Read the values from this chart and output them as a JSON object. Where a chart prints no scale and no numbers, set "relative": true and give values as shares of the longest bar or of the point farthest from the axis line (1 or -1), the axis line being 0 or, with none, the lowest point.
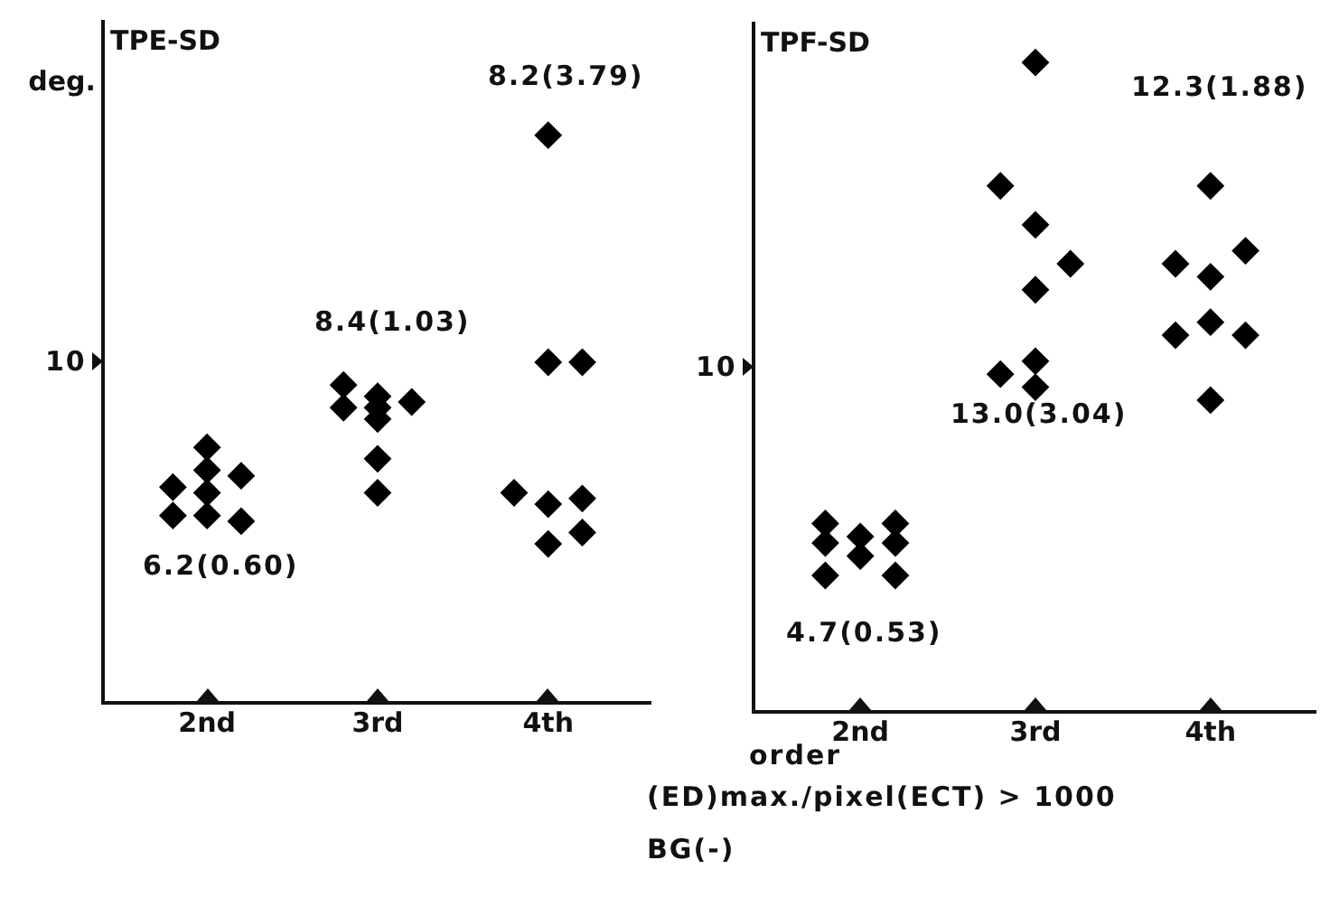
{
  "chart_data": [
    {
      "type": "scatter",
      "title": "TPE-SD",
      "ylabel": "deg.",
      "xlabel": "order",
      "marker": "diamond",
      "grid": false,
      "legend": false,
      "relative": true,
      "categories": [
        "2nd",
        "3rd",
        "4th"
      ],
      "series": [
        {
          "color": "#000000",
          "x": [
            "2nd",
            "2nd",
            "3rd",
            "3rd",
            "4th"
          ],
          "values": [
            0.38,
            0.33,
            0.56,
            0.52,
            0.37
          ]
        },
        {
          "color": "#000000",
          "x": [
            "2nd",
            "2nd",
            "2nd",
            "2nd",
            "3rd",
            "3rd",
            "3rd",
            "3rd",
            "3rd",
            "4th",
            "4th",
            "4th",
            "4th"
          ],
          "values": [
            0.45,
            0.41,
            0.37,
            0.33,
            0.54,
            0.52,
            0.5,
            0.43,
            0.37,
            1,
            0.6,
            0.35,
            0.28
          ]
        },
        {
          "color": "#000000",
          "x": [
            "2nd",
            "2nd",
            "3rd",
            "4th",
            "4th",
            "4th"
          ],
          "values": [
            0.4,
            0.32,
            0.53,
            0.6,
            0.36,
            0.3
          ]
        }
      ],
      "annotations": [
        "10",
        "6.2(0.60)",
        "8.4(1.03)",
        "8.2(3.79)"
      ]
    },
    {
      "type": "scatter",
      "title": "TPF-SD",
      "marker": "diamond",
      "grid": false,
      "legend": false,
      "relative": true,
      "categories": [
        "2nd",
        "3rd",
        "4th"
      ],
      "series": [
        {
          "color": "#000000",
          "x": [
            "2nd",
            "2nd",
            "2nd",
            "3rd",
            "3rd",
            "4th",
            "4th"
          ],
          "values": [
            0.29,
            0.26,
            0.21,
            0.81,
            0.52,
            0.69,
            0.58
          ]
        },
        {
          "color": "#000000",
          "x": [
            "2nd",
            "2nd",
            "3rd",
            "3rd",
            "3rd",
            "3rd",
            "3rd",
            "4th",
            "4th",
            "4th",
            "4th"
          ],
          "values": [
            0.27,
            0.24,
            1,
            0.75,
            0.65,
            0.54,
            0.5,
            0.81,
            0.67,
            0.6,
            0.48
          ]
        },
        {
          "color": "#000000",
          "x": [
            "2nd",
            "2nd",
            "2nd",
            "3rd",
            "4th",
            "4th"
          ],
          "values": [
            0.29,
            0.26,
            0.21,
            0.69,
            0.71,
            0.58
          ]
        }
      ],
      "annotations": [
        "10",
        "4.7(0.53)",
        "13.0(3.04)",
        "12.3(1.88)",
        "(ED)max./pixel(ECT) > 1000",
        "BG(-)"
      ]
    }
  ]
}
